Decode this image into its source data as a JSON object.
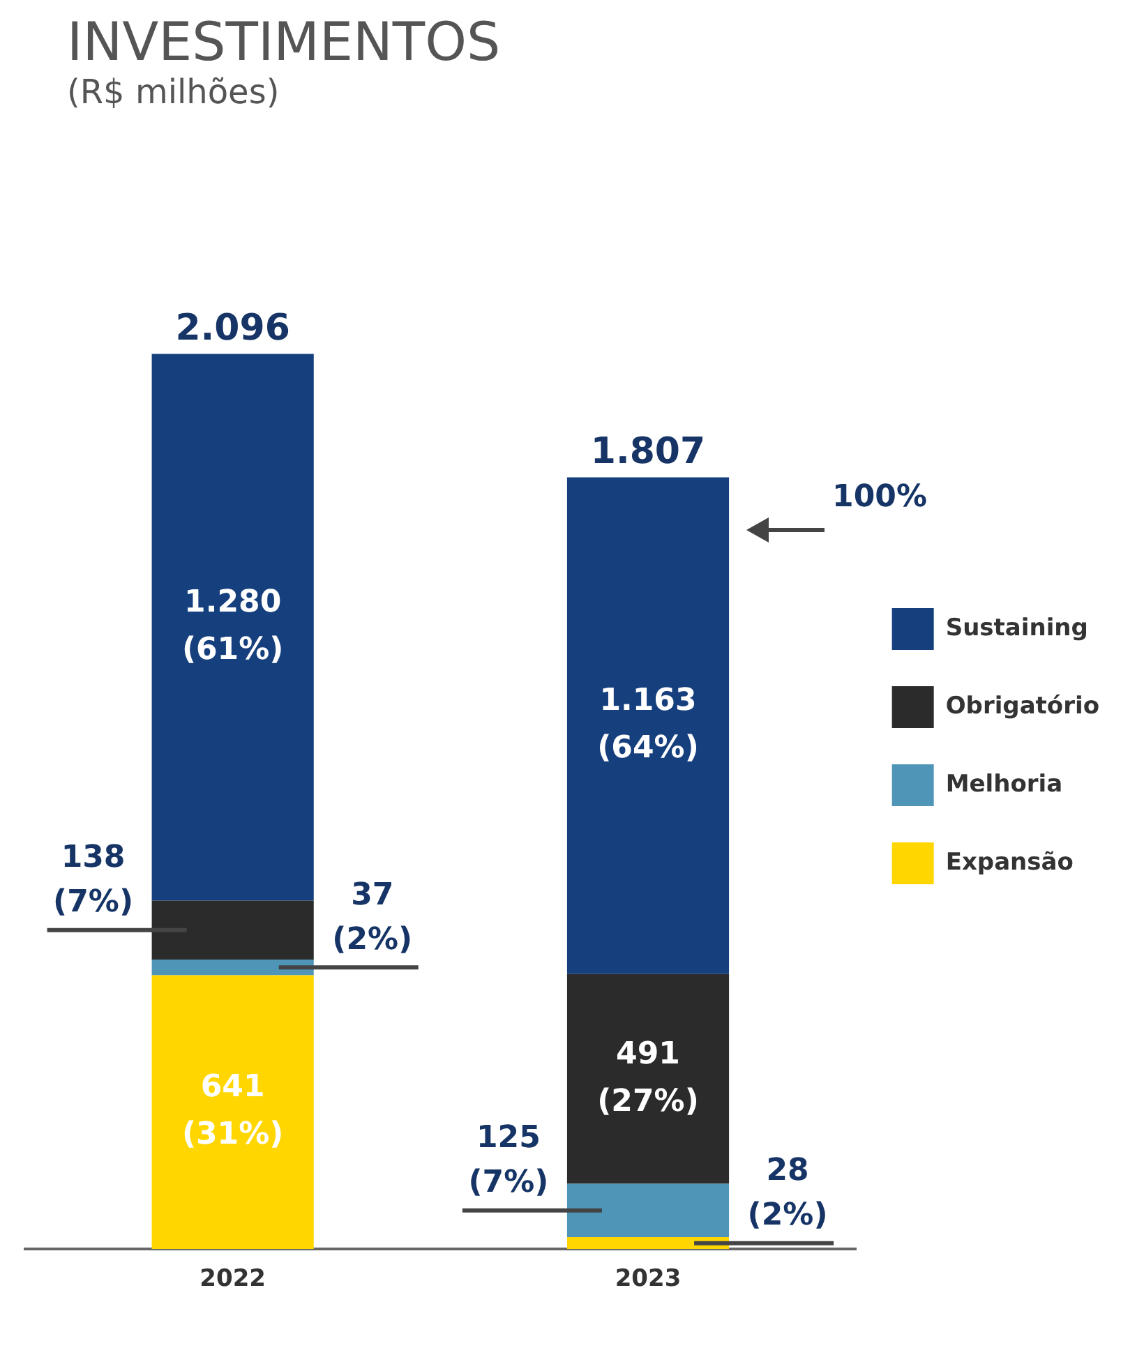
{
  "chart_data": {
    "type": "bar",
    "title": "INVESTIMENTOS",
    "subtitle": "(R$ milhões)",
    "categories": [
      "2022",
      "2023"
    ],
    "stacked": true,
    "legend": "right",
    "grid": false,
    "series": [
      {
        "name": "Expansão",
        "color": "#ffd600",
        "values": [
          641,
          28
        ],
        "value_labels": [
          "641\n(31%)",
          "28\n(2%)"
        ]
      },
      {
        "name": "Melhoria",
        "color": "#4f95b8",
        "values": [
          37,
          125
        ],
        "value_labels": [
          "37\n(2%)",
          "125\n(7%)"
        ]
      },
      {
        "name": "Obrigatório",
        "color": "#2b2b2b",
        "values": [
          138,
          491
        ],
        "value_labels": [
          "138\n(7%)",
          "491\n(27%)"
        ]
      },
      {
        "name": "Sustaining",
        "color": "#163f7e",
        "values": [
          1280,
          1163
        ],
        "value_labels": [
          "1.280\n(61%)",
          "1.163\n(64%)"
        ]
      }
    ],
    "totals": [
      "2.096",
      "1.807"
    ],
    "annotations": [
      "100%"
    ]
  }
}
